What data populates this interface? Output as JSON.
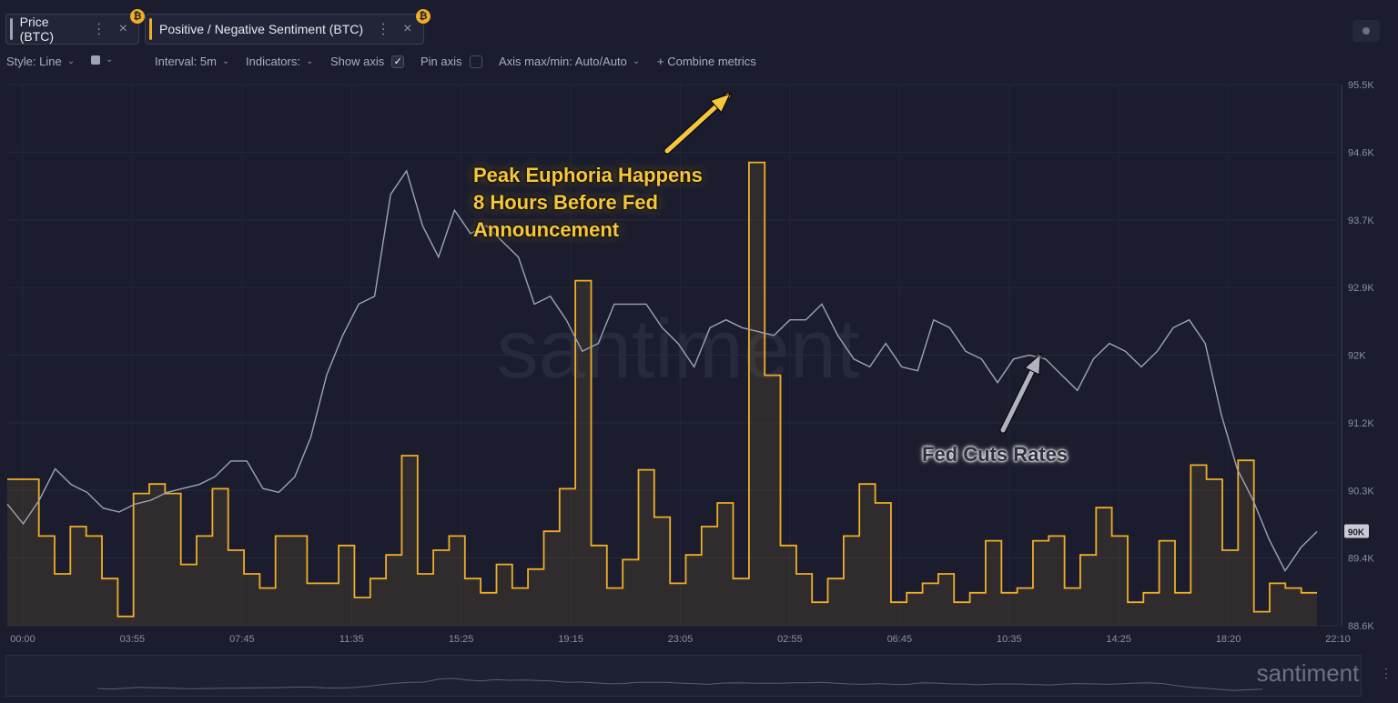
{
  "tabs": [
    {
      "label": "Price (BTC)",
      "menu_icon": "kebab-icon",
      "close": "×",
      "badge": "₿",
      "stripe_color": "#9ea3b4"
    },
    {
      "label": "Positive / Negative Sentiment (BTC)",
      "menu_icon": "kebab-icon",
      "close": "×",
      "badge": "₿",
      "stripe_color": "#f0ad26"
    }
  ],
  "toolbar": {
    "style": "Style: Line",
    "interval": "Interval: 5m",
    "indicators": "Indicators:",
    "show_axis": "Show axis",
    "pin_axis": "Pin axis",
    "axis_maxmin": "Axis max/min: Auto/Auto",
    "combine": "+ Combine metrics"
  },
  "chart_data": {
    "type": "line",
    "x_tick_labels": [
      "00:00",
      "03:55",
      "07:45",
      "11:35",
      "15:25",
      "19:15",
      "23:05",
      "02:55",
      "06:45",
      "10:35",
      "14:25",
      "18:20",
      "22:10"
    ],
    "y_tick_labels": [
      "95.5K",
      "94.6K",
      "93.7K",
      "92.9K",
      "92K",
      "91.2K",
      "90.3K",
      "89.4K",
      "88.6K"
    ],
    "ylim": [
      88600,
      95500
    ],
    "current_price_label": "90K",
    "watermark": "santiment",
    "colors": {
      "price": "#9ea3b4",
      "sentiment": "#f0ad26"
    },
    "series": [
      {
        "name": "Price (BTC)",
        "values": [
          90150,
          89900,
          90200,
          90600,
          90400,
          90300,
          90100,
          90050,
          90150,
          90200,
          90300,
          90350,
          90400,
          90500,
          90700,
          90700,
          90350,
          90300,
          90500,
          91000,
          91800,
          92300,
          92700,
          92800,
          94100,
          94400,
          93700,
          93300,
          93900,
          93600,
          93700,
          93500,
          93300,
          92700,
          92800,
          92500,
          92100,
          92200,
          92700,
          92700,
          92700,
          92400,
          92200,
          91900,
          92400,
          92500,
          92400,
          92350,
          92300,
          92500,
          92500,
          92700,
          92300,
          92000,
          91900,
          92200,
          91900,
          91850,
          92500,
          92400,
          92100,
          92000,
          91700,
          92000,
          92050,
          92000,
          91800,
          91600,
          92000,
          92200,
          92100,
          91900,
          92100,
          92400,
          92500,
          92200,
          91300,
          90600,
          90200,
          89700,
          89300,
          89600,
          89800
        ]
      },
      {
        "name": "Positive / Negative Sentiment (BTC)",
        "values": [
          1.5,
          1.5,
          0.9,
          0.5,
          1.0,
          0.9,
          0.45,
          0.05,
          1.35,
          1.45,
          1.35,
          0.6,
          0.9,
          1.4,
          0.75,
          0.5,
          0.35,
          0.9,
          0.9,
          0.4,
          0.4,
          0.8,
          0.25,
          0.45,
          0.7,
          1.75,
          0.5,
          0.75,
          0.9,
          0.45,
          0.3,
          0.6,
          0.35,
          0.55,
          0.95,
          1.4,
          3.6,
          0.8,
          0.35,
          0.65,
          1.6,
          1.1,
          0.4,
          0.7,
          1.0,
          1.25,
          0.45,
          4.85,
          2.6,
          0.8,
          0.5,
          0.2,
          0.45,
          0.9,
          1.45,
          1.25,
          0.2,
          0.3,
          0.4,
          0.5,
          0.2,
          0.3,
          0.85,
          0.3,
          0.35,
          0.85,
          0.9,
          0.35,
          0.7,
          1.2,
          0.9,
          0.2,
          0.3,
          0.85,
          0.3,
          1.65,
          1.5,
          0.75,
          1.7,
          0.1,
          0.4,
          0.35,
          0.3
        ]
      }
    ],
    "annotations": [
      {
        "text": "Peak Euphoria Happens\n8 Hours Before Fed\nAnnouncement",
        "color": "#f6c63c",
        "target_index": 47,
        "target_series": 1
      },
      {
        "text": "Fed Cuts Rates",
        "color": "#2c2f3c",
        "target_index": 66,
        "target_series": 0
      }
    ]
  }
}
